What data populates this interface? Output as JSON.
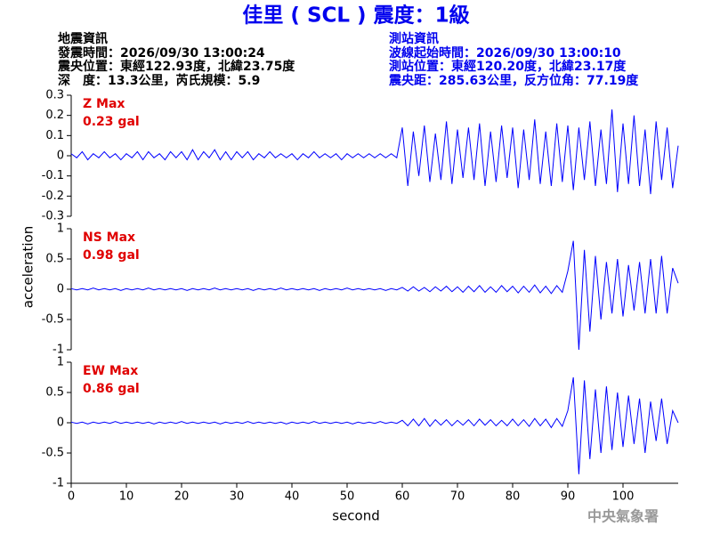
{
  "header": {
    "title": "佳里 ( SCL ) 震度：1級",
    "left": [
      "地震資訊",
      "發震時間：2026/09/30 13:00:24",
      "震央位置：東經122.93度，北緯23.75度",
      "深　度：13.3公里，芮氏規模：5.9"
    ],
    "right": [
      "測站資訊",
      "波線起始時間：2026/09/30 13:00:10",
      "測站位置：東經120.20度，北緯23.17度",
      "震央距：285.63公里，反方位角：77.19度"
    ],
    "ylabel": "acceleration",
    "xlabel": "second",
    "footer": "中央氣象署"
  },
  "chart_data": [
    {
      "type": "line",
      "color": "#0000ff",
      "annotation": "Z Max",
      "max_label": "0.23 gal",
      "x": [
        0,
        1,
        2,
        3,
        4,
        5,
        6,
        7,
        8,
        9,
        10,
        11,
        12,
        13,
        14,
        15,
        16,
        17,
        18,
        19,
        20,
        21,
        22,
        23,
        24,
        25,
        26,
        27,
        28,
        29,
        30,
        31,
        32,
        33,
        34,
        35,
        36,
        37,
        38,
        39,
        40,
        41,
        42,
        43,
        44,
        45,
        46,
        47,
        48,
        49,
        50,
        51,
        52,
        53,
        54,
        55,
        56,
        57,
        58,
        59,
        60,
        61,
        62,
        63,
        64,
        65,
        66,
        67,
        68,
        69,
        70,
        71,
        72,
        73,
        74,
        75,
        76,
        77,
        78,
        79,
        80,
        81,
        82,
        83,
        84,
        85,
        86,
        87,
        88,
        89,
        90,
        91,
        92,
        93,
        94,
        95,
        96,
        97,
        98,
        99,
        100,
        101,
        102,
        103,
        104,
        105,
        106,
        107,
        108,
        109,
        110
      ],
      "values": [
        0.01,
        -0.01,
        0.02,
        -0.02,
        0.01,
        -0.01,
        0.02,
        -0.01,
        0.01,
        -0.02,
        0.01,
        -0.01,
        0.02,
        -0.02,
        0.02,
        -0.01,
        0.01,
        -0.02,
        0.02,
        -0.01,
        0.02,
        -0.02,
        0.03,
        -0.02,
        0.02,
        -0.01,
        0.03,
        -0.02,
        0.02,
        -0.02,
        0.02,
        -0.01,
        0.02,
        -0.02,
        0.01,
        -0.01,
        0.02,
        -0.01,
        0.01,
        -0.01,
        0.01,
        -0.02,
        0.01,
        -0.01,
        0.02,
        -0.01,
        0.01,
        -0.01,
        0.01,
        -0.02,
        0.01,
        -0.01,
        0.01,
        -0.01,
        0.01,
        -0.01,
        0.01,
        -0.01,
        0.01,
        -0.01,
        0.14,
        -0.15,
        0.12,
        -0.1,
        0.15,
        -0.13,
        0.11,
        -0.12,
        0.17,
        -0.14,
        0.13,
        -0.11,
        0.14,
        -0.12,
        0.16,
        -0.15,
        0.12,
        -0.13,
        0.15,
        -0.11,
        0.14,
        -0.16,
        0.13,
        -0.12,
        0.18,
        -0.14,
        0.12,
        -0.15,
        0.16,
        -0.13,
        0.15,
        -0.17,
        0.14,
        -0.12,
        0.17,
        -0.15,
        0.13,
        -0.14,
        0.23,
        -0.18,
        0.16,
        -0.14,
        0.2,
        -0.15,
        0.13,
        -0.19,
        0.17,
        -0.12,
        0.14,
        -0.16,
        0.05
      ],
      "xlim": [
        0,
        110
      ],
      "ylim": [
        -0.3,
        0.3
      ],
      "yticks": [
        -0.3,
        -0.2,
        -0.1,
        0,
        0.1,
        0.2,
        0.3
      ]
    },
    {
      "type": "line",
      "color": "#0000ff",
      "annotation": "NS Max",
      "max_label": "0.98 gal",
      "x": [
        0,
        1,
        2,
        3,
        4,
        5,
        6,
        7,
        8,
        9,
        10,
        11,
        12,
        13,
        14,
        15,
        16,
        17,
        18,
        19,
        20,
        21,
        22,
        23,
        24,
        25,
        26,
        27,
        28,
        29,
        30,
        31,
        32,
        33,
        34,
        35,
        36,
        37,
        38,
        39,
        40,
        41,
        42,
        43,
        44,
        45,
        46,
        47,
        48,
        49,
        50,
        51,
        52,
        53,
        54,
        55,
        56,
        57,
        58,
        59,
        60,
        61,
        62,
        63,
        64,
        65,
        66,
        67,
        68,
        69,
        70,
        71,
        72,
        73,
        74,
        75,
        76,
        77,
        78,
        79,
        80,
        81,
        82,
        83,
        84,
        85,
        86,
        87,
        88,
        89,
        90,
        91,
        92,
        93,
        94,
        95,
        96,
        97,
        98,
        99,
        100,
        101,
        102,
        103,
        104,
        105,
        106,
        107,
        108,
        109,
        110
      ],
      "values": [
        0.01,
        -0.01,
        0.01,
        -0.01,
        0.02,
        -0.01,
        0.01,
        -0.01,
        0.01,
        -0.02,
        0.01,
        -0.01,
        0.01,
        -0.01,
        0.02,
        -0.01,
        0.01,
        -0.01,
        0.01,
        -0.01,
        0.01,
        -0.02,
        0.01,
        -0.01,
        0.01,
        -0.01,
        0.02,
        -0.01,
        0.01,
        -0.01,
        0.01,
        -0.01,
        0.01,
        -0.02,
        0.01,
        -0.01,
        0.01,
        -0.01,
        0.02,
        -0.01,
        0.01,
        -0.01,
        0.01,
        -0.01,
        0.01,
        -0.02,
        0.01,
        -0.01,
        0.01,
        -0.01,
        0.02,
        -0.01,
        0.01,
        -0.01,
        0.01,
        -0.01,
        0.01,
        -0.02,
        0.01,
        -0.01,
        0.03,
        -0.03,
        0.04,
        -0.03,
        0.03,
        -0.04,
        0.04,
        -0.03,
        0.05,
        -0.04,
        0.04,
        -0.05,
        0.05,
        -0.04,
        0.06,
        -0.05,
        0.04,
        -0.05,
        0.06,
        -0.04,
        0.05,
        -0.06,
        0.05,
        -0.05,
        0.07,
        -0.06,
        0.05,
        -0.07,
        0.06,
        -0.05,
        0.3,
        0.8,
        -1,
        0.65,
        -0.7,
        0.55,
        -0.5,
        0.45,
        -0.4,
        0.5,
        -0.45,
        0.4,
        -0.35,
        0.45,
        -0.4,
        0.5,
        -0.4,
        0.55,
        -0.4,
        0.35,
        0.1
      ],
      "xlim": [
        0,
        110
      ],
      "ylim": [
        -1,
        1
      ],
      "yticks": [
        -1,
        -0.5,
        0,
        0.5,
        1
      ]
    },
    {
      "type": "line",
      "color": "#0000ff",
      "annotation": "EW Max",
      "max_label": "0.86 gal",
      "x": [
        0,
        1,
        2,
        3,
        4,
        5,
        6,
        7,
        8,
        9,
        10,
        11,
        12,
        13,
        14,
        15,
        16,
        17,
        18,
        19,
        20,
        21,
        22,
        23,
        24,
        25,
        26,
        27,
        28,
        29,
        30,
        31,
        32,
        33,
        34,
        35,
        36,
        37,
        38,
        39,
        40,
        41,
        42,
        43,
        44,
        45,
        46,
        47,
        48,
        49,
        50,
        51,
        52,
        53,
        54,
        55,
        56,
        57,
        58,
        59,
        60,
        61,
        62,
        63,
        64,
        65,
        66,
        67,
        68,
        69,
        70,
        71,
        72,
        73,
        74,
        75,
        76,
        77,
        78,
        79,
        80,
        81,
        82,
        83,
        84,
        85,
        86,
        87,
        88,
        89,
        90,
        91,
        92,
        93,
        94,
        95,
        96,
        97,
        98,
        99,
        100,
        101,
        102,
        103,
        104,
        105,
        106,
        107,
        108,
        109,
        110
      ],
      "values": [
        0.01,
        -0.01,
        0.01,
        -0.02,
        0.01,
        -0.01,
        0.01,
        -0.01,
        0.02,
        -0.01,
        0.01,
        -0.01,
        0.01,
        -0.01,
        0.01,
        -0.02,
        0.01,
        -0.01,
        0.01,
        -0.01,
        0.02,
        -0.01,
        0.01,
        -0.01,
        0.01,
        -0.01,
        0.01,
        -0.02,
        0.01,
        -0.01,
        0.01,
        -0.01,
        0.02,
        -0.01,
        0.01,
        -0.01,
        0.01,
        -0.01,
        0.01,
        -0.02,
        0.01,
        -0.01,
        0.01,
        -0.01,
        0.02,
        -0.01,
        0.01,
        -0.01,
        0.01,
        -0.01,
        0.01,
        -0.02,
        0.01,
        -0.01,
        0.01,
        -0.01,
        0.02,
        -0.01,
        0.01,
        -0.01,
        0.04,
        -0.05,
        0.06,
        -0.05,
        0.07,
        -0.06,
        0.05,
        -0.04,
        0.05,
        -0.05,
        0.04,
        -0.04,
        0.05,
        -0.05,
        0.06,
        -0.04,
        0.05,
        -0.05,
        0.04,
        -0.05,
        0.06,
        -0.05,
        0.05,
        -0.06,
        0.07,
        -0.05,
        0.06,
        -0.08,
        0.07,
        -0.06,
        0.2,
        0.75,
        -0.85,
        0.7,
        -0.6,
        0.55,
        -0.5,
        0.6,
        -0.45,
        0.5,
        -0.4,
        0.45,
        -0.35,
        0.4,
        -0.5,
        0.35,
        -0.3,
        0.4,
        -0.35,
        0.2,
        0
      ],
      "xlim": [
        0,
        110
      ],
      "ylim": [
        -1,
        1
      ],
      "yticks": [
        -1,
        -0.5,
        0,
        0.5,
        1
      ],
      "xticks": [
        0,
        10,
        20,
        30,
        40,
        50,
        60,
        70,
        80,
        90,
        100
      ]
    }
  ]
}
